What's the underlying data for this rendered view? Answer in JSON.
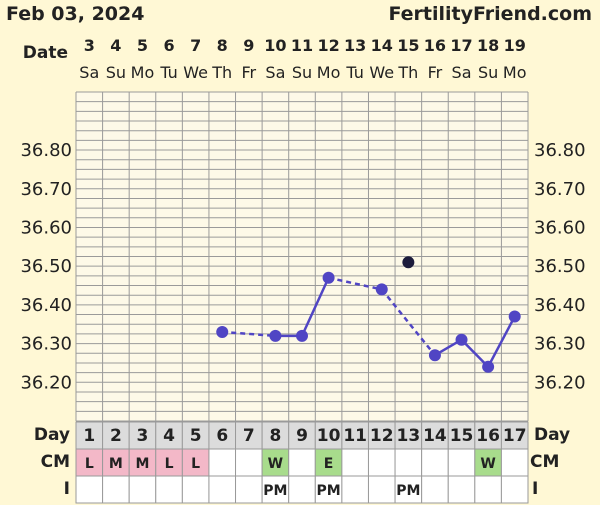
{
  "header": {
    "date": "Feb 03, 2024",
    "site": "FertilityFriend.com"
  },
  "row_labels": {
    "date": "Date",
    "day": "Day",
    "cm": "CM",
    "i": "I"
  },
  "colors": {
    "background": "#fff8d5",
    "grid": "#9a9a9a",
    "line": "#5045c4",
    "open_marker": "#1c1c3c",
    "cm_menstrual": "#f3b8c8",
    "cm_fertile": "#a8dc8c",
    "day_row": "#dcdcdc",
    "plot_fill": "#fdf9e8"
  },
  "chart_data": {
    "type": "line",
    "ylim": [
      36.1,
      36.95
    ],
    "yticks": [
      36.2,
      36.3,
      36.4,
      36.5,
      36.6,
      36.7,
      36.8
    ],
    "ytick_labels": [
      "36.20",
      "36.30",
      "36.40",
      "36.50",
      "36.60",
      "36.70",
      "36.80"
    ],
    "dates": [
      "3",
      "4",
      "5",
      "6",
      "7",
      "8",
      "9",
      "10",
      "11",
      "12",
      "13",
      "14",
      "15",
      "16",
      "17",
      "18",
      "19"
    ],
    "weekdays": [
      "Sa",
      "Su",
      "Mo",
      "Tu",
      "We",
      "Th",
      "Fr",
      "Sa",
      "Su",
      "Mo",
      "Tu",
      "We",
      "Th",
      "Fr",
      "Sa",
      "Su",
      "Mo"
    ],
    "cycle_days": [
      "1",
      "2",
      "3",
      "4",
      "5",
      "6",
      "7",
      "8",
      "9",
      "10",
      "11",
      "12",
      "13",
      "14",
      "15",
      "16",
      "17"
    ],
    "temperatures": [
      null,
      null,
      null,
      null,
      null,
      36.33,
      null,
      36.32,
      36.32,
      36.47,
      null,
      36.44,
      36.51,
      36.27,
      36.31,
      36.24,
      36.37
    ],
    "excluded_points": [
      12
    ],
    "segments": [
      {
        "from": 5,
        "to": 7,
        "style": "dashed"
      },
      {
        "from": 7,
        "to": 8,
        "style": "solid"
      },
      {
        "from": 8,
        "to": 9,
        "style": "solid"
      },
      {
        "from": 9,
        "to": 11,
        "style": "dashed"
      },
      {
        "from": 11,
        "to": 13,
        "style": "dashed"
      },
      {
        "from": 13,
        "to": 14,
        "style": "solid"
      },
      {
        "from": 14,
        "to": 15,
        "style": "solid"
      },
      {
        "from": 15,
        "to": 16,
        "style": "solid"
      }
    ],
    "cm": [
      "L",
      "M",
      "M",
      "L",
      "L",
      "",
      "",
      "W",
      "",
      "E",
      "",
      "",
      "",
      "",
      "",
      "W",
      ""
    ],
    "cm_type": [
      "menstrual",
      "menstrual",
      "menstrual",
      "menstrual",
      "menstrual",
      "",
      "",
      "fertile",
      "",
      "fertile",
      "",
      "",
      "",
      "",
      "",
      "fertile",
      ""
    ],
    "intercourse": [
      "",
      "",
      "",
      "",
      "",
      "",
      "",
      "PM",
      "",
      "PM",
      "",
      "",
      "PM",
      "",
      "",
      "",
      ""
    ]
  }
}
